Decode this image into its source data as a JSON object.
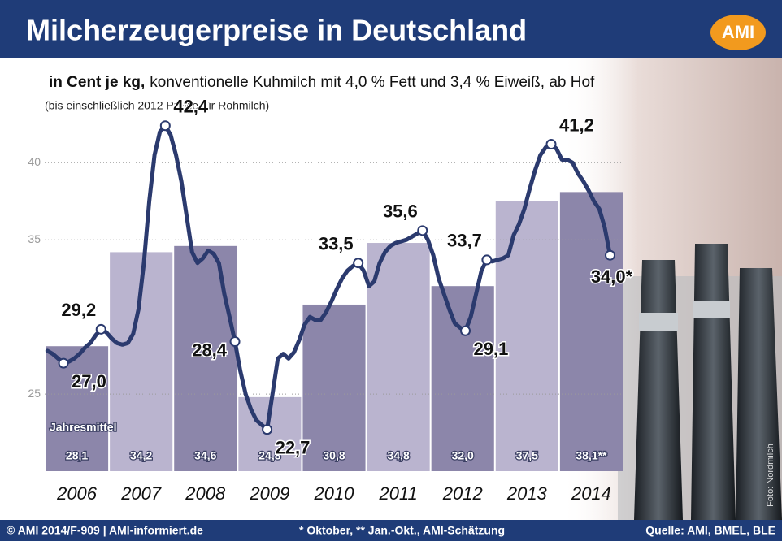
{
  "chart_data": {
    "type": "combo",
    "title": "Milcherzeugerpreise in Deutschland",
    "logo": "AMI",
    "subtitle_bold": "in Cent je kg,",
    "subtitle": "konventionelle Kuhmilch mit 4,0 % Fett und 3,4 % Eiweiß, ab Hof",
    "note": "(bis einschließlich 2012 Preise für Rohmilch)",
    "categories": [
      "2006",
      "2007",
      "2008",
      "2009",
      "2010",
      "2011",
      "2012",
      "2013",
      "2014"
    ],
    "ylim": [
      20,
      46.6
    ],
    "yticks": [
      25,
      35,
      40
    ],
    "grid": true,
    "bars": {
      "label": "Jahresmittel",
      "values": [
        28.1,
        34.2,
        34.6,
        24.8,
        30.8,
        34.8,
        32.0,
        37.5,
        38.1
      ],
      "value_labels": [
        "28,1",
        "34,2",
        "34,6",
        "24,8",
        "30,8",
        "34,8",
        "32,0",
        "37,5",
        "38,1**"
      ],
      "colors": [
        "#8c86aa",
        "#bab4cf",
        "#8c86aa",
        "#bab4cf",
        "#8c86aa",
        "#bab4cf",
        "#8c86aa",
        "#bab4cf",
        "#8c86aa"
      ]
    },
    "line": {
      "color": "#2b3a6e",
      "values": [
        27.8,
        27.6,
        27.3,
        27.0,
        27.1,
        27.3,
        27.6,
        28.0,
        28.3,
        28.8,
        29.2,
        29.0,
        28.6,
        28.3,
        28.2,
        28.3,
        28.9,
        30.5,
        33.5,
        37.5,
        40.5,
        42.0,
        42.4,
        41.8,
        40.5,
        38.8,
        36.5,
        34.2,
        33.5,
        33.8,
        34.3,
        34.1,
        33.5,
        31.5,
        30.0,
        28.4,
        26.5,
        25.0,
        24.0,
        23.3,
        23.0,
        22.7,
        25.0,
        27.3,
        27.6,
        27.3,
        27.7,
        28.5,
        29.5,
        30.0,
        29.8,
        29.8,
        30.3,
        31.0,
        31.8,
        32.5,
        33.0,
        33.3,
        33.5,
        33.0,
        32.0,
        32.3,
        33.5,
        34.2,
        34.6,
        34.8,
        34.9,
        35.0,
        35.2,
        35.4,
        35.6,
        35.0,
        34.0,
        32.5,
        31.5,
        30.5,
        29.6,
        29.3,
        29.1,
        30.0,
        31.5,
        33.0,
        33.7,
        33.6,
        33.7,
        33.8,
        34.0,
        35.3,
        36.0,
        37.0,
        38.3,
        39.5,
        40.5,
        41.0,
        41.2,
        40.9,
        40.2,
        40.2,
        40.0,
        39.3,
        38.8,
        38.2,
        37.5,
        37.0,
        35.8,
        34.0
      ],
      "value_labels": [
        null,
        null,
        null,
        "27,0",
        null,
        null,
        null,
        null,
        null,
        null,
        "29,2",
        null,
        null,
        null,
        null,
        null,
        null,
        null,
        null,
        null,
        null,
        null,
        "42,4",
        null,
        null,
        null,
        null,
        null,
        null,
        null,
        null,
        null,
        null,
        null,
        null,
        "28,4",
        null,
        null,
        null,
        null,
        null,
        "22,7",
        null,
        null,
        null,
        null,
        null,
        null,
        null,
        null,
        null,
        null,
        null,
        null,
        null,
        null,
        null,
        null,
        "33,5",
        null,
        null,
        null,
        null,
        null,
        null,
        null,
        null,
        null,
        null,
        null,
        "35,6",
        null,
        null,
        null,
        null,
        null,
        null,
        null,
        "29,1",
        null,
        null,
        null,
        "33,7",
        null,
        null,
        null,
        null,
        null,
        null,
        null,
        null,
        null,
        null,
        null,
        "41,2",
        null,
        null,
        null,
        null,
        null,
        null,
        null,
        null,
        null,
        null,
        "34,0*"
      ]
    },
    "footer_left": "© AMI 2014/F-909 | AMI-informiert.de",
    "footer_mid": "* Oktober, ** Jan.-Okt., AMI-Schätzung",
    "footer_right": "Quelle: AMI, BMEL, BLE",
    "photo_credit": "Foto: Nordmilch"
  }
}
